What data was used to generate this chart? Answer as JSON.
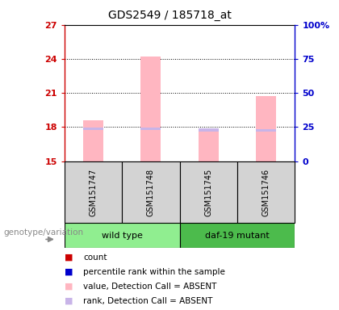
{
  "title": "GDS2549 / 185718_at",
  "samples": [
    "GSM151747",
    "GSM151748",
    "GSM151745",
    "GSM151746"
  ],
  "ylim_left": [
    15,
    27
  ],
  "ylim_right": [
    0,
    100
  ],
  "yticks_left": [
    15,
    18,
    21,
    24,
    27
  ],
  "yticks_right": [
    0,
    25,
    50,
    75,
    100
  ],
  "ytick_labels_right": [
    "0",
    "25",
    "50",
    "75",
    "100%"
  ],
  "bar_values": [
    18.6,
    24.2,
    17.8,
    20.7
  ],
  "rank_values": [
    17.85,
    17.85,
    17.75,
    17.7
  ],
  "bar_color_absent": "#FFB6C1",
  "rank_color_absent": "#C8B4E8",
  "bar_width": 0.35,
  "left_axis_color": "#CC0000",
  "right_axis_color": "#0000CC",
  "hgrid_at": [
    18,
    21,
    24
  ],
  "legend_items": [
    {
      "color": "#CC0000",
      "label": "count"
    },
    {
      "color": "#0000CC",
      "label": "percentile rank within the sample"
    },
    {
      "color": "#FFB6C1",
      "label": "value, Detection Call = ABSENT"
    },
    {
      "color": "#C8B4E8",
      "label": "rank, Detection Call = ABSENT"
    }
  ],
  "genotype_label": "genotype/variation",
  "panel_bg": "#D3D3D3",
  "wt_color": "#90EE90",
  "daf_color": "#4CBB4C"
}
